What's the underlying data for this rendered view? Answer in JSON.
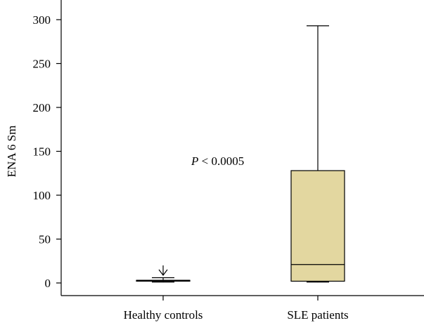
{
  "chart_data": {
    "type": "box",
    "ylabel": "ENA 6 Sm",
    "xlabel": "",
    "ylim": [
      -18,
      315
    ],
    "yticks": [
      0,
      50,
      100,
      150,
      200,
      250,
      300
    ],
    "categories": [
      "Healthy controls",
      "SLE patients"
    ],
    "boxes": [
      {
        "category": "Healthy controls",
        "whisker_low": 1,
        "q1": 2,
        "median": 3,
        "q3": 3,
        "whisker_high": 6,
        "outliers": [
          12
        ]
      },
      {
        "category": "SLE patients",
        "whisker_low": 1,
        "q1": 2,
        "median": 21,
        "q3": 128,
        "whisker_high": 293,
        "outliers": []
      }
    ],
    "annotation": {
      "p_symbol": "P",
      "p_text": "< 0.0005"
    },
    "colors": {
      "box_fill": "#e3d7a0",
      "line": "#000000"
    }
  }
}
